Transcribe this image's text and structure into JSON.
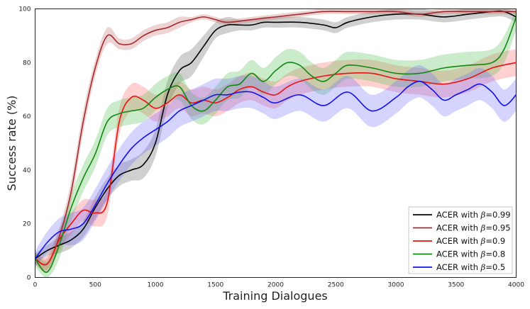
{
  "chart_data": {
    "type": "line",
    "xlabel": "Training Dialogues",
    "ylabel": "Success rate (%)",
    "xlim": [
      0,
      4000
    ],
    "ylim": [
      0,
      100
    ],
    "x_ticks": [
      0,
      500,
      1000,
      1500,
      2000,
      2500,
      3000,
      3500,
      4000
    ],
    "y_ticks": [
      0,
      20,
      40,
      60,
      80,
      100
    ],
    "grid": false,
    "legend_position": "bottom-right",
    "legend_prefix": "ACER with ",
    "legend_symbol": "β",
    "series": [
      {
        "name": "ACER with β=0.99",
        "beta": "=0.99",
        "color": "#000000",
        "band_color": "#555555",
        "x": [
          0,
          100,
          200,
          300,
          400,
          500,
          600,
          700,
          800,
          900,
          1000,
          1100,
          1200,
          1300,
          1400,
          1500,
          1600,
          1700,
          1800,
          1900,
          2000,
          2200,
          2400,
          2500,
          2600,
          2800,
          3000,
          3200,
          3400,
          3600,
          3800,
          3900,
          4000
        ],
        "y": [
          7,
          10,
          12,
          14,
          18,
          26,
          33,
          38,
          40,
          42,
          50,
          68,
          77,
          80,
          86,
          92,
          94,
          94,
          94,
          95,
          95,
          95,
          94,
          93,
          95,
          97,
          98,
          98,
          97,
          98,
          99,
          99,
          97
        ],
        "band": [
          2,
          2,
          3,
          3,
          3,
          4,
          4,
          4,
          4,
          5,
          5,
          5,
          5,
          5,
          4,
          3,
          3,
          2,
          2,
          2,
          2,
          2,
          2,
          2,
          2,
          2,
          2,
          2,
          2,
          2,
          2,
          2,
          2
        ]
      },
      {
        "name": "ACER with β=0.95",
        "beta": "=0.95",
        "color": "#a52a2a",
        "band_color": "#c06060",
        "x": [
          0,
          100,
          200,
          300,
          400,
          500,
          600,
          700,
          800,
          900,
          1000,
          1100,
          1200,
          1300,
          1400,
          1500,
          1600,
          1800,
          2000,
          2200,
          2400,
          2600,
          2800,
          3000,
          3200,
          3400,
          3600,
          3800,
          4000
        ],
        "y": [
          7,
          5,
          15,
          32,
          58,
          78,
          90,
          87,
          87,
          90,
          92,
          93,
          95,
          96,
          97,
          96,
          95,
          96,
          97,
          98,
          99,
          99,
          99,
          99,
          98,
          99,
          99,
          99,
          99
        ],
        "band": [
          2,
          2,
          3,
          4,
          4,
          3,
          3,
          2,
          2,
          2,
          2,
          2,
          2,
          1,
          1,
          1,
          1,
          1,
          1,
          1,
          1,
          1,
          1,
          1,
          1,
          1,
          1,
          1,
          1
        ]
      },
      {
        "name": "ACER with β=0.9",
        "beta": "=0.9",
        "color": "#ee1111",
        "band_color": "#ff5555",
        "x": [
          0,
          100,
          200,
          300,
          400,
          500,
          600,
          700,
          800,
          900,
          1000,
          1100,
          1200,
          1300,
          1400,
          1500,
          1600,
          1700,
          1800,
          1900,
          2000,
          2100,
          2200,
          2400,
          2600,
          2800,
          3000,
          3200,
          3400,
          3600,
          3800,
          4000
        ],
        "y": [
          7,
          5,
          14,
          20,
          25,
          24,
          28,
          58,
          67,
          66,
          63,
          65,
          68,
          65,
          66,
          65,
          67,
          70,
          71,
          69,
          68,
          71,
          73,
          75,
          76,
          76,
          74,
          73,
          72,
          74,
          78,
          80
        ],
        "band": [
          2,
          3,
          4,
          4,
          4,
          5,
          5,
          5,
          5,
          5,
          5,
          5,
          5,
          5,
          5,
          5,
          5,
          5,
          5,
          5,
          5,
          5,
          5,
          5,
          5,
          5,
          5,
          5,
          5,
          5,
          5,
          5
        ]
      },
      {
        "name": "ACER with β=0.8",
        "beta": "=0.8",
        "color": "#118811",
        "band_color": "#44bb44",
        "x": [
          0,
          100,
          200,
          300,
          400,
          500,
          600,
          700,
          800,
          900,
          1000,
          1100,
          1200,
          1300,
          1400,
          1500,
          1600,
          1700,
          1800,
          1900,
          2000,
          2100,
          2200,
          2300,
          2400,
          2500,
          2600,
          2800,
          3000,
          3200,
          3400,
          3600,
          3800,
          3900,
          4000
        ],
        "y": [
          7,
          2,
          12,
          26,
          37,
          46,
          58,
          61,
          62,
          63,
          67,
          70,
          71,
          64,
          62,
          66,
          71,
          72,
          76,
          73,
          77,
          80,
          79,
          75,
          73,
          76,
          79,
          78,
          76,
          76,
          78,
          79,
          80,
          85,
          97
        ],
        "band": [
          3,
          4,
          5,
          5,
          5,
          5,
          5,
          5,
          5,
          5,
          5,
          5,
          5,
          5,
          5,
          5,
          5,
          5,
          5,
          5,
          5,
          5,
          5,
          5,
          5,
          5,
          5,
          5,
          5,
          5,
          5,
          5,
          5,
          5,
          5
        ]
      },
      {
        "name": "ACER with β=0.5",
        "beta": "=0.5",
        "color": "#1111ee",
        "band_color": "#6666ff",
        "x": [
          0,
          100,
          200,
          300,
          400,
          500,
          600,
          700,
          800,
          900,
          1000,
          1100,
          1200,
          1300,
          1400,
          1500,
          1600,
          1700,
          1800,
          1900,
          2000,
          2200,
          2400,
          2600,
          2800,
          3000,
          3100,
          3200,
          3300,
          3400,
          3500,
          3600,
          3700,
          3800,
          3900,
          4000
        ],
        "y": [
          7,
          13,
          17,
          18,
          20,
          27,
          35,
          42,
          48,
          52,
          55,
          58,
          62,
          64,
          66,
          68,
          68,
          69,
          69,
          67,
          65,
          68,
          64,
          69,
          62,
          67,
          71,
          73,
          70,
          66,
          68,
          70,
          72,
          69,
          64,
          68
        ],
        "band": [
          3,
          4,
          5,
          6,
          6,
          6,
          6,
          6,
          6,
          6,
          6,
          6,
          6,
          6,
          6,
          6,
          6,
          6,
          6,
          6,
          6,
          6,
          6,
          6,
          6,
          6,
          6,
          6,
          6,
          6,
          6,
          6,
          6,
          6,
          6,
          6
        ]
      }
    ]
  }
}
